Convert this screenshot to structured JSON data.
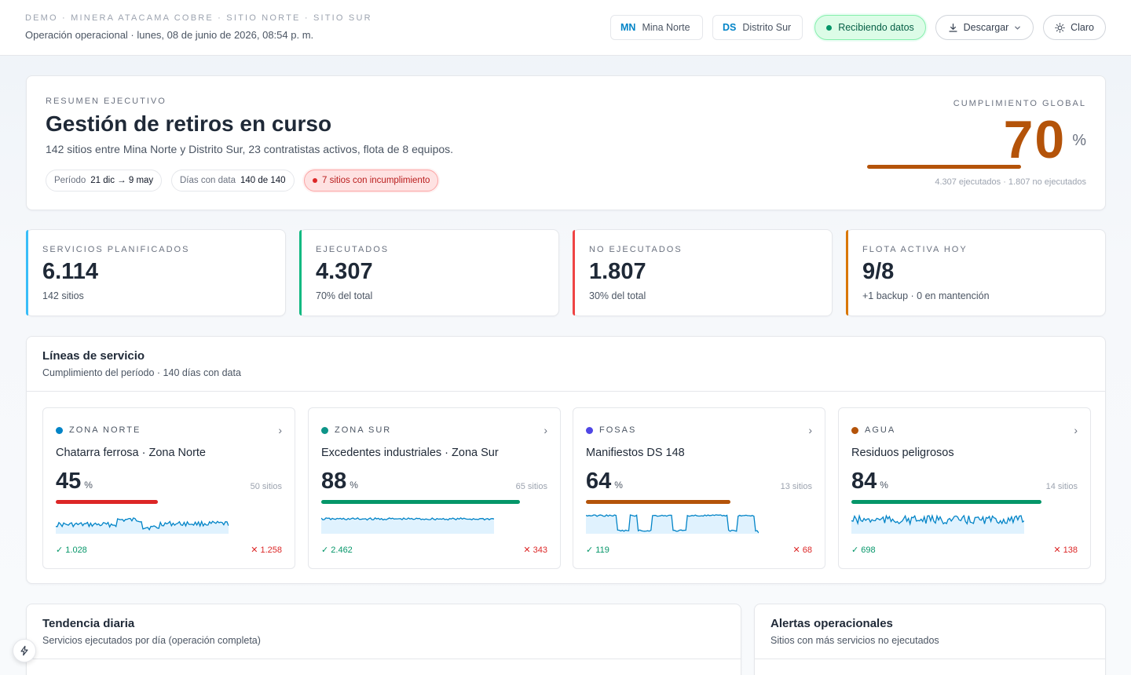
{
  "header": {
    "breadcrumb": "DEMO · MINERA ATACAMA COBRE · SITIO NORTE · SITIO SUR",
    "subtitle": "Operación operacional · lunes, 08 de junio de 2026, 08:54 p. m.",
    "sites": [
      {
        "code": "MN",
        "label": "Mina Norte"
      },
      {
        "code": "DS",
        "label": "Distrito Sur"
      }
    ],
    "live_label": "Recibiendo datos",
    "download_label": "Descargar",
    "theme_label": "Claro"
  },
  "summary": {
    "eyebrow": "RESUMEN EJECUTIVO",
    "title": "Gestión de retiros en curso",
    "description": "142 sitios entre Mina Norte y Distrito Sur, 23 contratistas activos, flota de 8 equipos.",
    "chips": {
      "period_label": "Período",
      "period_value": "21 dic → 9 may",
      "days_label": "Días con data",
      "days_value": "140 de 140",
      "alert": "7 sitios con incumplimiento"
    },
    "compliance": {
      "label": "CUMPLIMIENTO GLOBAL",
      "value": "70",
      "unit": "%",
      "progress": 0.7,
      "detail": "4.307 ejecutados · 1.807 no ejecutados"
    }
  },
  "kpis": [
    {
      "label": "SERVICIOS PLANIFICADOS",
      "value": "6.114",
      "sub": "142 sitios",
      "accent": "#38bdf8"
    },
    {
      "label": "EJECUTADOS",
      "value": "4.307",
      "sub": "70% del total",
      "accent": "#10b981"
    },
    {
      "label": "NO EJECUTADOS",
      "value": "1.807",
      "sub": "30% del total",
      "accent": "#ef4444"
    },
    {
      "label": "FLOTA ACTIVA HOY",
      "value": "9/8",
      "sub": "+1 backup · 0 en mantención",
      "accent": "#d97706"
    }
  ],
  "service_lines": {
    "title": "Líneas de servicio",
    "subtitle": "Cumplimiento del período · 140 días con data",
    "items": [
      {
        "tag": "ZONA NORTE",
        "dot": "#0284c7",
        "name": "Chatarra ferrosa · Zona Norte",
        "pct": "45",
        "unit": "%",
        "progress": 0.45,
        "bar_color": "#dc2626",
        "sites": "50 sitios",
        "ok": "✓ 1.028",
        "ko": "✕ 1.258"
      },
      {
        "tag": "ZONA SUR",
        "dot": "#0d9488",
        "name": "Excedentes industriales · Zona Sur",
        "pct": "88",
        "unit": "%",
        "progress": 0.88,
        "bar_color": "#059669",
        "sites": "65 sitios",
        "ok": "✓ 2.462",
        "ko": "✕ 343"
      },
      {
        "tag": "FOSAS",
        "dot": "#4f46e5",
        "name": "Manifiestos DS 148",
        "pct": "64",
        "unit": "%",
        "progress": 0.64,
        "bar_color": "#b45309",
        "sites": "13 sitios",
        "ok": "✓ 119",
        "ko": "✕ 68"
      },
      {
        "tag": "AGUA",
        "dot": "#b45309",
        "name": "Residuos peligrosos",
        "pct": "84",
        "unit": "%",
        "progress": 0.84,
        "bar_color": "#059669",
        "sites": "14 sitios",
        "ok": "✓ 698",
        "ko": "✕ 138"
      }
    ]
  },
  "trend": {
    "title": "Tendencia diaria",
    "subtitle": "Servicios ejecutados por día (operación completa)"
  },
  "alerts": {
    "title": "Alertas operacionales",
    "subtitle": "Sitios con más servicios no ejecutados"
  },
  "icons": {
    "download": "download-icon",
    "chevron": "chevron-down-icon",
    "theme": "sun-icon",
    "fab": "bolt-icon"
  }
}
